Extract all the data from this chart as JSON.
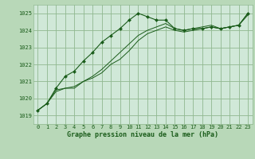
{
  "title": "Graphe pression niveau de la mer (hPa)",
  "fig_bg_color": "#b8d8b8",
  "plot_bg_color": "#d0e8d8",
  "grid_color": "#90b890",
  "line_color": "#1a5c1a",
  "marker_color": "#1a5c1a",
  "x_labels": [
    "0",
    "1",
    "2",
    "3",
    "4",
    "5",
    "6",
    "7",
    "8",
    "9",
    "10",
    "11",
    "12",
    "13",
    "14",
    "15",
    "16",
    "17",
    "18",
    "19",
    "20",
    "21",
    "22",
    "23"
  ],
  "ylim": [
    1018.5,
    1025.5
  ],
  "yticks": [
    1019,
    1020,
    1021,
    1022,
    1023,
    1024,
    1025
  ],
  "series1": [
    1019.3,
    1019.7,
    1020.6,
    1021.3,
    1021.6,
    1022.2,
    1022.7,
    1023.3,
    1023.7,
    1024.1,
    1024.6,
    1025.0,
    1024.8,
    1024.6,
    1024.6,
    1024.1,
    1024.0,
    1024.1,
    1024.1,
    1024.2,
    1024.1,
    1024.2,
    1024.3,
    1025.0
  ],
  "series2": [
    1019.3,
    1019.7,
    1020.5,
    1020.6,
    1020.7,
    1021.0,
    1021.3,
    1021.7,
    1022.2,
    1022.7,
    1023.2,
    1023.7,
    1024.0,
    1024.2,
    1024.4,
    1024.1,
    1024.0,
    1024.1,
    1024.2,
    1024.3,
    1024.1,
    1024.2,
    1024.3,
    1025.0
  ],
  "series3": [
    1019.3,
    1019.7,
    1020.4,
    1020.6,
    1020.6,
    1021.0,
    1021.2,
    1021.5,
    1022.0,
    1022.3,
    1022.8,
    1023.4,
    1023.8,
    1024.0,
    1024.2,
    1024.0,
    1023.9,
    1024.0,
    1024.1,
    1024.2,
    1024.1,
    1024.2,
    1024.3,
    1024.9
  ],
  "title_fontsize": 6.0,
  "tick_fontsize": 5.0
}
